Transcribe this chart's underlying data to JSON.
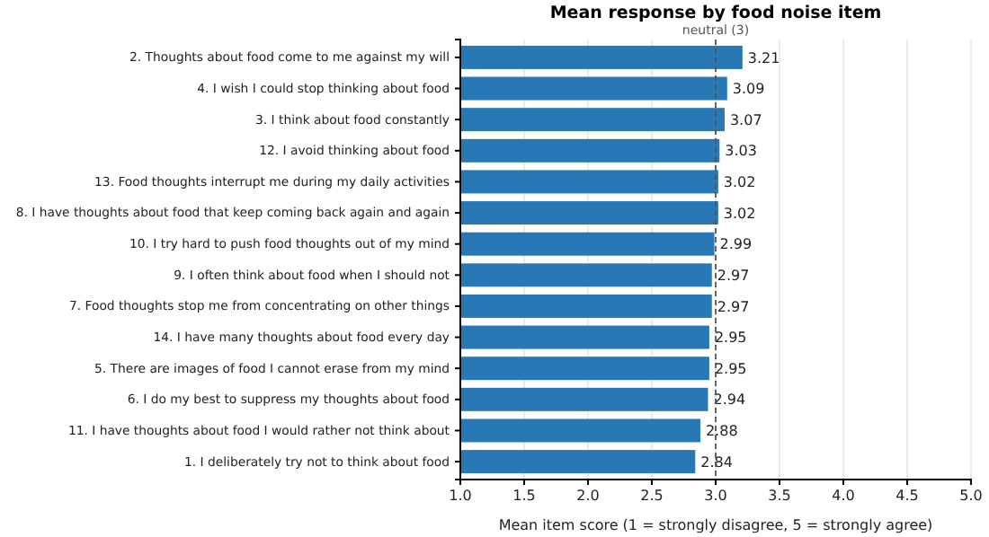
{
  "chart_data": {
    "type": "bar",
    "orientation": "horizontal",
    "title": "Mean response by food noise item",
    "xlabel": "Mean item score (1 = strongly disagree, 5 = strongly agree)",
    "categories": [
      "2. Thoughts about food come to me against my will",
      "4. I wish I could stop thinking about food",
      "3. I think about food constantly",
      "12. I avoid thinking about food",
      "13. Food thoughts interrupt me during my daily activities",
      "8. I have thoughts about food that keep coming back again and again",
      "10. I try hard to push food thoughts out of my mind",
      "9. I often think about food when I should not",
      "7. Food thoughts stop me from concentrating on other things",
      "14. I have many thoughts about food every day",
      "5. There are images of food I cannot erase from my mind",
      "6. I do my best to suppress my thoughts about food",
      "11. I have thoughts about food I would rather not think about",
      "1. I deliberately try not to think about food"
    ],
    "values": [
      3.21,
      3.09,
      3.07,
      3.03,
      3.02,
      3.02,
      2.99,
      2.97,
      2.97,
      2.95,
      2.95,
      2.94,
      2.88,
      2.84
    ],
    "color": "#2878b5",
    "xlim": [
      1.0,
      5.0
    ],
    "xticks": [
      {
        "value": 1,
        "label": "1.0"
      },
      {
        "value": 1.5,
        "label": "1.5"
      },
      {
        "value": 2,
        "label": "2.0"
      },
      {
        "value": 2.5,
        "label": "2.5"
      },
      {
        "value": 3,
        "label": "3.0"
      },
      {
        "value": 3.5,
        "label": "3.5"
      },
      {
        "value": 4,
        "label": "4.0"
      },
      {
        "value": 4.5,
        "label": "4.5"
      },
      {
        "value": 5,
        "label": "5.0"
      }
    ],
    "grid": "x",
    "data_labels": true,
    "ref_lines": [
      {
        "axis": "x",
        "value": 3,
        "label": "neutral (3)",
        "color": "#555555",
        "line_style": "dashed"
      }
    ]
  }
}
